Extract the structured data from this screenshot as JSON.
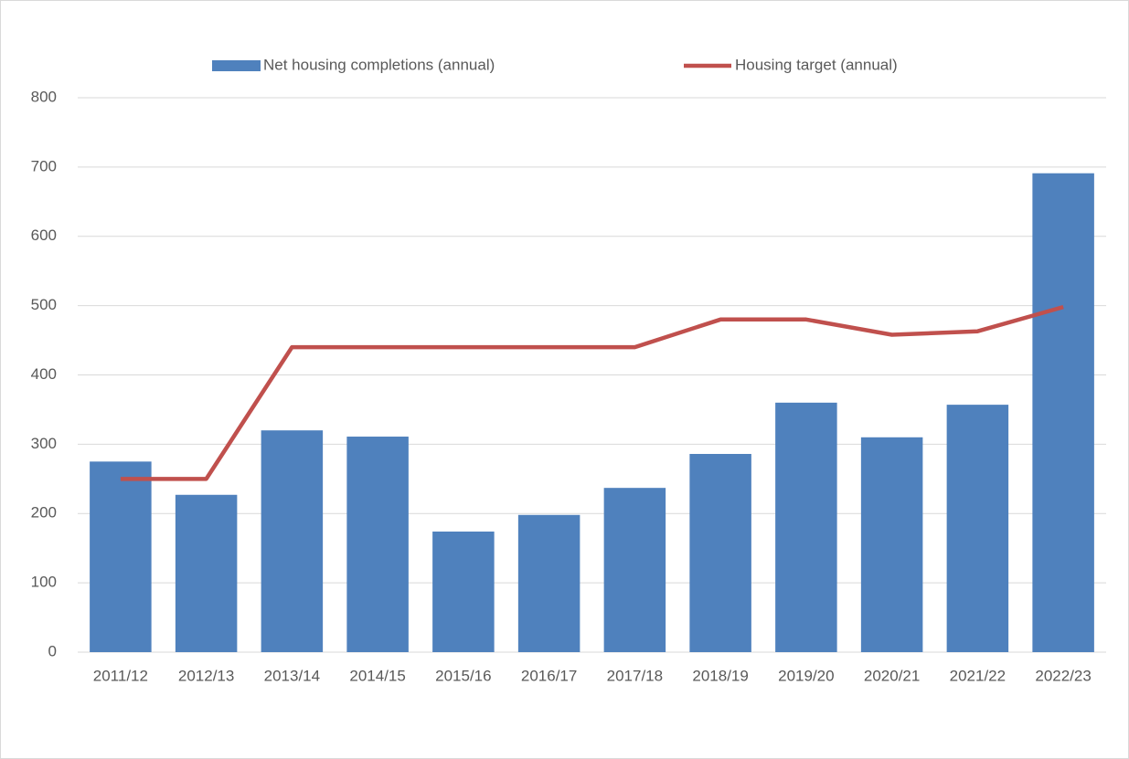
{
  "chart_data": {
    "type": "bar",
    "categories": [
      "2011/12",
      "2012/13",
      "2013/14",
      "2014/15",
      "2015/16",
      "2016/17",
      "2017/18",
      "2018/19",
      "2019/20",
      "2020/21",
      "2021/22",
      "2022/23"
    ],
    "series": [
      {
        "name": "Net housing completions (annual)",
        "type": "bar",
        "color": "#4f81bd",
        "values": [
          275,
          227,
          320,
          311,
          174,
          198,
          237,
          286,
          360,
          310,
          357,
          691
        ]
      },
      {
        "name": "Housing target (annual)",
        "type": "line",
        "color": "#c0504d",
        "values": [
          250,
          250,
          440,
          440,
          440,
          440,
          440,
          480,
          480,
          458,
          463,
          498
        ]
      }
    ],
    "ylim": [
      0,
      800
    ],
    "yticks": [
      0,
      100,
      200,
      300,
      400,
      500,
      600,
      700,
      800
    ],
    "grid": true,
    "legend": "top"
  }
}
